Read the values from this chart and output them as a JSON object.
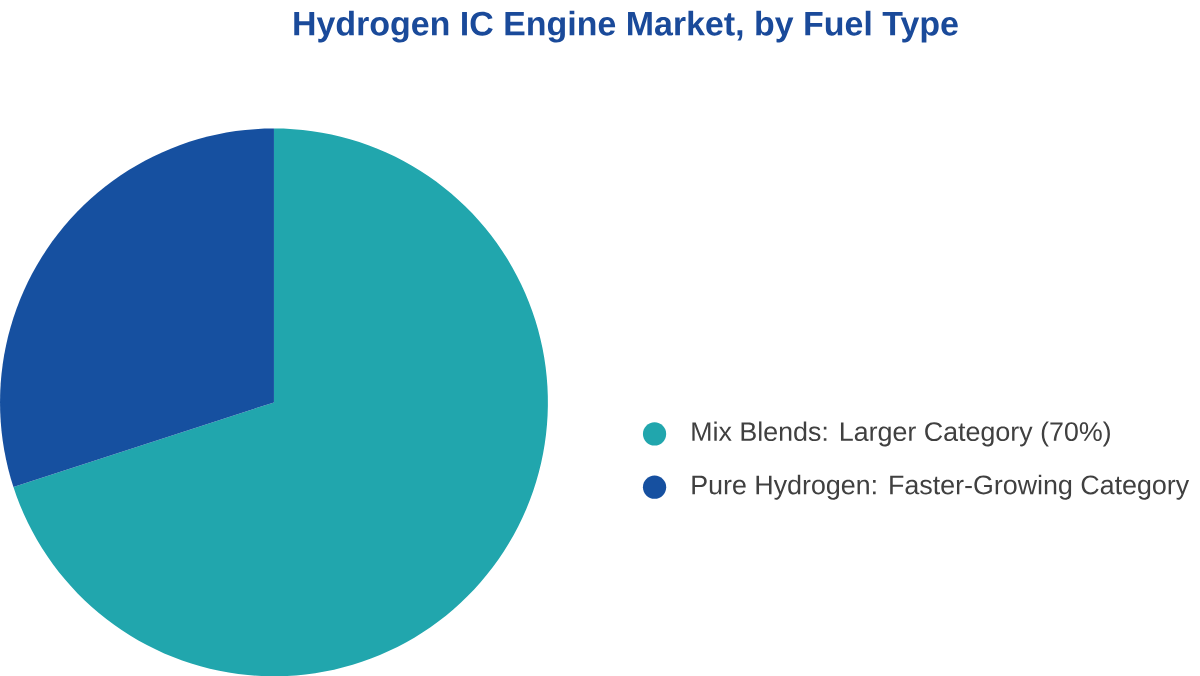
{
  "chart_data": {
    "type": "pie",
    "title": "Hydrogen IC Engine Market, by Fuel Type",
    "categories": [
      "Mix Blends:  Larger Category (70%)",
      "Pure Hydrogen:  Faster-Growing Category"
    ],
    "values": [
      70,
      30
    ],
    "colors": [
      "#21a6ad",
      "#1650a0"
    ],
    "legend": "right"
  }
}
